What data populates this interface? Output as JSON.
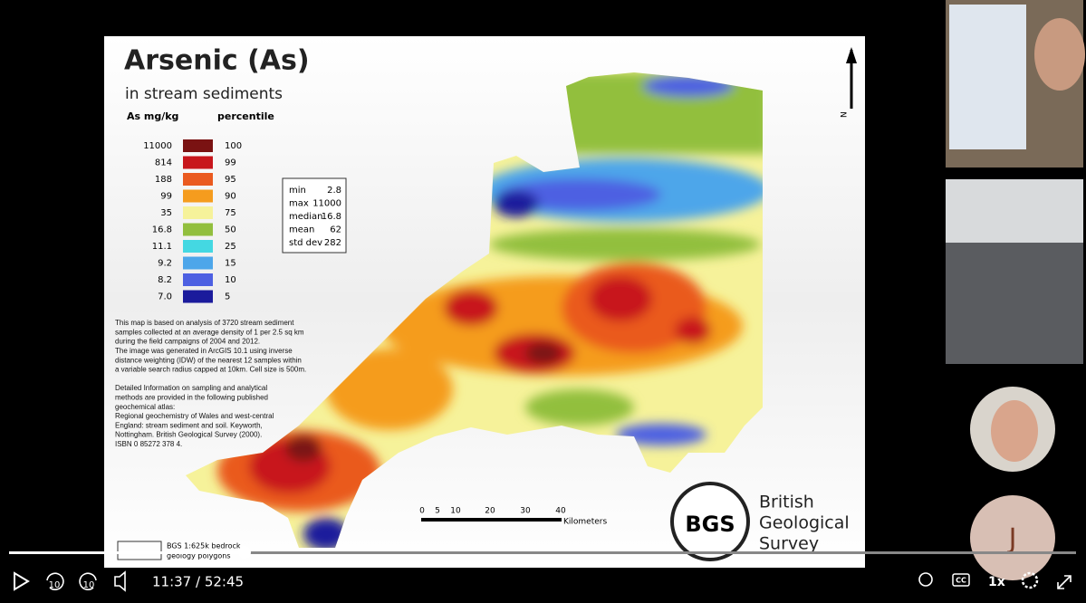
{
  "slide": {
    "title": "Arsenic (As)",
    "subtitle": "in stream sediments",
    "legend_headers": [
      "As mg/kg",
      "percentile"
    ],
    "legend": [
      {
        "value": "11000",
        "percentile": "100",
        "color": "#7a1212"
      },
      {
        "value": "814",
        "percentile": "99",
        "color": "#c8161c"
      },
      {
        "value": "188",
        "percentile": "95",
        "color": "#ea5a1f"
      },
      {
        "value": "99",
        "percentile": "90",
        "color": "#f59c1e"
      },
      {
        "value": "35",
        "percentile": "75",
        "color": "#f6f29a"
      },
      {
        "value": "16.8",
        "percentile": "50",
        "color": "#92bf3e"
      },
      {
        "value": "11.1",
        "percentile": "25",
        "color": "#44d8e2"
      },
      {
        "value": "9.2",
        "percentile": "15",
        "color": "#4da6ea"
      },
      {
        "value": "8.2",
        "percentile": "10",
        "color": "#4d60e2"
      },
      {
        "value": "7.0",
        "percentile": "5",
        "color": "#1b1b9c"
      }
    ],
    "stats": [
      [
        "min",
        "2.8"
      ],
      [
        "max",
        "11000"
      ],
      [
        "median",
        "16.8"
      ],
      [
        "mean",
        "62"
      ],
      [
        "std dev",
        "282"
      ]
    ],
    "description": [
      "This map is based on analysis of 3720 stream sediment",
      "samples collected at an average density of 1 per 2.5 sq km",
      "during the field campaigns of 2004 and 2012.",
      "The image was generated in ArcGIS 10.1 using inverse",
      "distance weighting (IDW) of the nearest 12 samples within",
      "a variable search radius capped at 10km. Cell size is 500m.",
      "",
      "Detailed Information on sampling and analytical",
      "methods are provided in the following published",
      "geochemical atlas:",
      "Regional geochemistry of Wales and west-central",
      "England: stream sediment and soil. Keyworth,",
      "Nottingham. British Geological Survey (2000).",
      "ISBN 0 85272 378 4."
    ],
    "scale_labels": [
      "0",
      "5",
      "10",
      "20",
      "30",
      "40"
    ],
    "scale_unit": "Kilometers",
    "north": "N",
    "logo": "BGS",
    "org": [
      "British",
      "Geological",
      "Survey"
    ],
    "key": [
      "BGS 1:625k bedrock",
      "geology polygons"
    ]
  },
  "player": {
    "time": "11:37 / 52:45",
    "speed": "1x",
    "skip_back": "10",
    "skip_forward": "10",
    "cc": "CC",
    "avatar": "J"
  }
}
